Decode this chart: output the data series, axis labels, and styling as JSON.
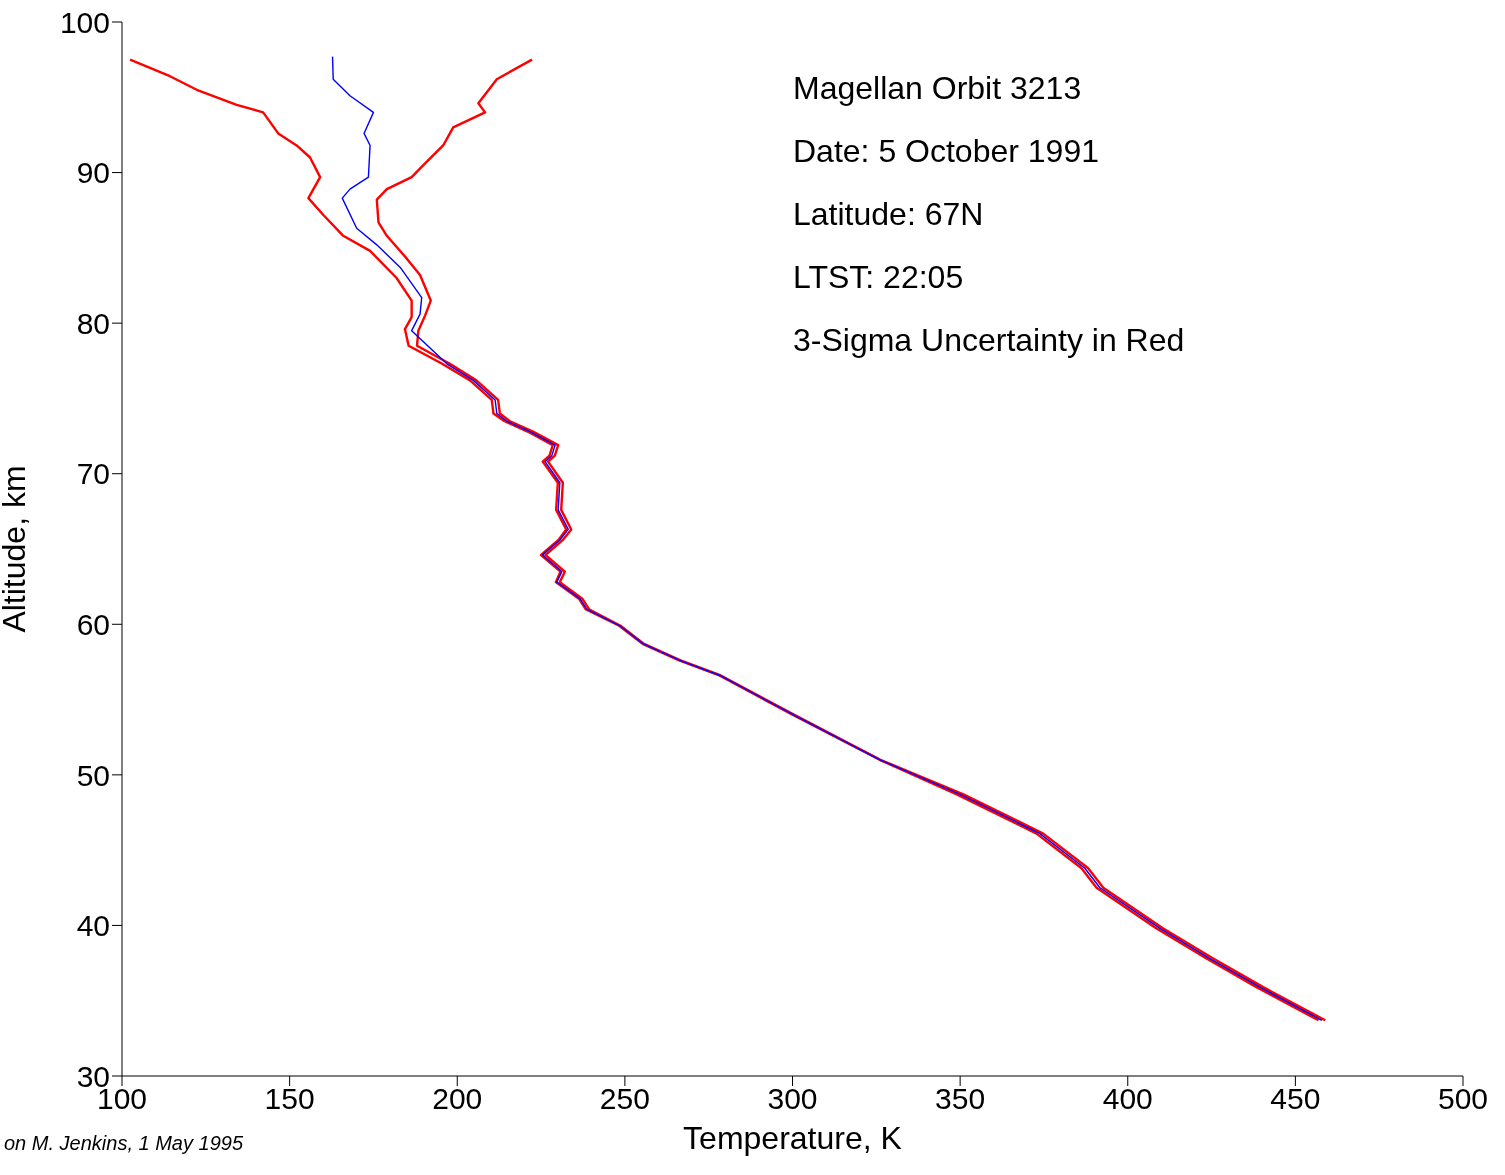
{
  "chart_data": {
    "type": "line",
    "xlabel": "Temperature, K",
    "ylabel": "Altitude, km",
    "annotations": [
      "Magellan Orbit 3213",
      "Date: 5 October 1991",
      "Latitude: 67N",
      "LTST: 22:05",
      "3-Sigma Uncertainty in Red",
      "on M. Jenkins, 1 May 1995"
    ],
    "xlim": [
      100,
      500
    ],
    "xticks": [
      100,
      150,
      200,
      250,
      300,
      350,
      400,
      450,
      500
    ],
    "ylim": [
      30,
      100
    ],
    "yticks": [
      30,
      40,
      50,
      60,
      70,
      80,
      90,
      100
    ],
    "series": [
      {
        "color": "#ff0000",
        "x": [
          102.4,
          114.3,
          122.3,
          134.2,
          142.1,
          146.6,
          152.1,
          156.1,
          159.1,
          155.6,
          160,
          166,
          174,
          181.9,
          186.4,
          186.4,
          184.4,
          185.5,
          195.5,
          203.8,
          210.3,
          210.8,
          214,
          221,
          228.5,
          227.5,
          225.5,
          230,
          229.5,
          232.5,
          230.2,
          225,
          230.8,
          229.4,
          236.3,
          238.3,
          248.3,
          255.3,
          266.2,
          278.2,
          300,
          326,
          349,
          372.8,
          386.2,
          390.7,
          408.6,
          423.5,
          438.4,
          456.9
        ],
        "values": [
          97.5,
          96.4,
          95.5,
          94.5,
          94,
          92.6,
          91.8,
          91,
          89.7,
          88.3,
          87.2,
          85.8,
          84.8,
          83,
          81.5,
          80.4,
          79.6,
          78.5,
          77.3,
          76.2,
          74.9,
          74,
          73.5,
          72.8,
          71.9,
          71.2,
          70.8,
          69.4,
          67.6,
          66.3,
          65.6,
          64.6,
          63.5,
          62.8,
          61.7,
          61,
          59.9,
          58.7,
          57.6,
          56.6,
          54,
          51,
          48.7,
          46.1,
          43.8,
          42.5,
          39.8,
          37.8,
          35.9,
          33.7
        ]
      },
      {
        "color": "#ff0000",
        "x": [
          222.3,
          211.8,
          206.3,
          208.3,
          198.8,
          195.8,
          189.9,
          186.4,
          179,
          176,
          176.5,
          179,
          184.9,
          188.9,
          192.1,
          190.4,
          188.4,
          188,
          197.8,
          205.7,
          212.2,
          212.7,
          215.6,
          222.6,
          230.1,
          229.1,
          227.1,
          231.5,
          231,
          234,
          231.5,
          226.3,
          232.1,
          230.6,
          237.3,
          239.3,
          248.7,
          255.7,
          266.6,
          278.6,
          300.4,
          326.2,
          351,
          374.8,
          388.2,
          392.7,
          410.6,
          425.5,
          440.4,
          458.9
        ],
        "values": [
          97.5,
          96.2,
          94.6,
          94,
          93,
          91.8,
          90.5,
          89.7,
          88.9,
          88.2,
          86.7,
          85.8,
          84.3,
          83.2,
          81.5,
          80.5,
          79.5,
          78.5,
          77.3,
          76.2,
          74.9,
          74,
          73.5,
          72.8,
          71.9,
          71.2,
          70.8,
          69.4,
          67.6,
          66.3,
          65.6,
          64.6,
          63.5,
          62.8,
          61.7,
          61,
          59.9,
          58.7,
          57.6,
          56.6,
          54,
          51,
          48.7,
          46.1,
          43.8,
          42.5,
          39.8,
          37.8,
          35.9,
          33.7
        ]
      },
      {
        "color": "#0000ff",
        "x": [
          162.8,
          163,
          168,
          175,
          172.2,
          174,
          173.5,
          168,
          165.7,
          170,
          176,
          183,
          189.4,
          188.9,
          186.4,
          196.9,
          204.8,
          211.3,
          211.8,
          214.7,
          221.7,
          229.2,
          228.2,
          226.2,
          230.6,
          230.1,
          233.1,
          230.6,
          225.4,
          231.2,
          229.7,
          236.6,
          238.6,
          248.5,
          255.5,
          266.4,
          278.4,
          300.2,
          326.1,
          350,
          373.8,
          387.2,
          391.7,
          409.6,
          424.5,
          439.4,
          457.9
        ],
        "values": [
          97.7,
          96.2,
          95.1,
          94,
          92.6,
          91.8,
          89.7,
          88.9,
          88.3,
          86.3,
          85.2,
          83.7,
          81.7,
          80.6,
          79.5,
          77.3,
          76.2,
          74.9,
          74,
          73.5,
          72.8,
          71.9,
          71.2,
          70.8,
          69.4,
          67.6,
          66.3,
          65.6,
          64.6,
          63.5,
          62.8,
          61.7,
          61,
          59.9,
          58.7,
          57.6,
          56.6,
          54,
          51,
          48.7,
          46.1,
          43.8,
          42.5,
          39.8,
          37.8,
          35.9,
          33.7
        ]
      }
    ]
  }
}
